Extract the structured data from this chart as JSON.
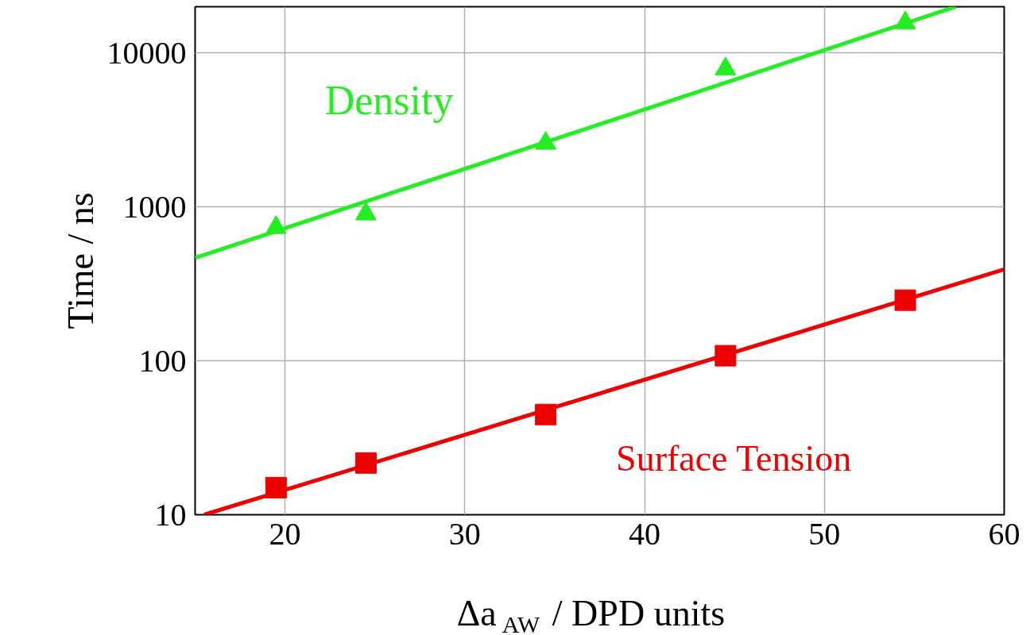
{
  "chart_data": {
    "type": "scatter",
    "xlabel": "Δa$_{AW}$ / DPD units",
    "ylabel": "Time / ns",
    "log": "y",
    "grid": true,
    "xlim": [
      15,
      60
    ],
    "xticks": [
      20,
      30,
      40,
      50,
      60
    ],
    "ylim": [
      10,
      20000
    ],
    "yticks": [
      10,
      100,
      1000,
      10000
    ],
    "series": [
      {
        "name": "Density",
        "marker": "triangle",
        "color": "#22ee22",
        "x": [
          19.5,
          24.5,
          34.5,
          44.5,
          54.5
        ],
        "values": [
          735,
          900,
          2590,
          7890,
          15700
        ]
      },
      {
        "type": "line",
        "color": "#22ee22",
        "x": [
          15,
          57.3
        ],
        "values": [
          467,
          20000
        ]
      },
      {
        "name": "Surface Tension",
        "marker": "square",
        "color": "#ee0000",
        "x": [
          19.5,
          24.5,
          34.5,
          44.5,
          54.5
        ],
        "values": [
          15,
          21.7,
          44.8,
          108,
          248
        ]
      },
      {
        "type": "line",
        "color": "#ee0000",
        "x": [
          15.5,
          60
        ],
        "values": [
          10,
          393
        ]
      }
    ]
  }
}
